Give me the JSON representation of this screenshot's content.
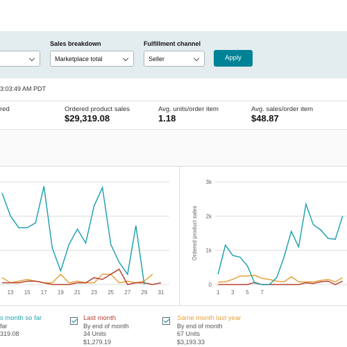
{
  "filters": {
    "sales_breakdown_label": "Sales breakdown",
    "sales_breakdown_value": "Marketplace total",
    "fulfillment_label": "Fulfillment channel",
    "fulfillment_value": "Seller",
    "apply": "Apply"
  },
  "timestamp": "3:03:49 AM PDT",
  "metrics": [
    {
      "label": "red"
    },
    {
      "label": "Ordered product sales",
      "value": "$29,319.08"
    },
    {
      "label": "Avg. units/order item",
      "value": "1.18"
    },
    {
      "label": "Avg. sales/order item",
      "value": "$48.87"
    }
  ],
  "charts": [
    {
      "type": "line",
      "x": [
        12,
        13,
        14,
        15,
        16,
        17,
        18,
        19,
        20,
        21,
        22,
        23,
        24,
        25,
        26,
        27,
        28,
        29,
        30,
        31
      ],
      "xticks": [
        13,
        15,
        17,
        19,
        21,
        23,
        25,
        27,
        29,
        31
      ],
      "xlim": [
        11.75,
        32
      ],
      "ylim": [
        0,
        3
      ],
      "series": [
        {
          "name": "This month",
          "color": "#23a3b0",
          "values": [
            2.67,
            2.0,
            1.66,
            1.66,
            1.8,
            2.87,
            1.07,
            0.4,
            1.17,
            1.62,
            1.21,
            2.3,
            2.83,
            1.17,
            0.65,
            0.3,
            1.72,
            0,
            null,
            null
          ]
        },
        {
          "name": "Last month",
          "color": "#b8412f",
          "values": [
            0.05,
            0.05,
            0.05,
            0.1,
            0.1,
            0.05,
            0,
            0,
            0,
            0.05,
            0.05,
            0.2,
            0.15,
            0.3,
            0.45,
            0,
            0.05,
            0.05,
            0,
            0.05
          ]
        },
        {
          "name": "Same month last year",
          "color": "#e3a23b",
          "values": [
            0.2,
            0.05,
            0.1,
            0.15,
            0.1,
            0.05,
            0.05,
            0.3,
            0.05,
            0.1,
            0.05,
            0.05,
            0.3,
            0.3,
            0.05,
            0.1,
            0.05,
            0.1,
            0.3,
            null
          ]
        }
      ]
    },
    {
      "type": "line",
      "y_label": "Ordered product sales",
      "x": [
        1,
        2,
        3,
        4,
        5,
        6,
        7,
        8,
        9,
        10,
        11,
        12,
        13,
        14,
        15,
        16,
        17,
        18
      ],
      "xticks": [
        1,
        3,
        5,
        7
      ],
      "xlim": [
        0.6,
        18.6
      ],
      "ylim": [
        0,
        3000
      ],
      "yticks": [
        0,
        {
          "value": 1000,
          "label": "1k"
        },
        {
          "value": 2000,
          "label": "2k"
        },
        {
          "value": 3000,
          "label": "3k"
        }
      ],
      "series": [
        {
          "name": "This month",
          "color": "#23a3b0",
          "values": [
            300,
            1150,
            850,
            800,
            550,
            40,
            0,
            0,
            200,
            800,
            1550,
            1100,
            2350,
            1750,
            1600,
            1350,
            1320,
            2000
          ]
        },
        {
          "name": "Last month",
          "color": "#b8412f",
          "values": [
            0,
            0,
            0,
            0,
            0,
            60,
            0,
            0,
            0,
            0,
            0,
            0,
            50,
            30,
            80,
            100,
            0,
            100
          ]
        },
        {
          "name": "Same month last year",
          "color": "#e3a23b",
          "values": [
            70,
            80,
            150,
            250,
            250,
            270,
            180,
            150,
            100,
            80,
            230,
            80,
            80,
            80,
            120,
            150,
            80,
            200
          ]
        }
      ]
    }
  ],
  "legend": [
    {
      "title": "s month so far",
      "line1": "far",
      "line2": "319.08"
    },
    {
      "title": "Last month",
      "line1": "By end of month",
      "line2": "34 Units",
      "line3": "$1,279.19"
    },
    {
      "title": "Same month last year",
      "line1": "By end of month",
      "line2": "67 Units",
      "line3": "$3,193.33"
    }
  ]
}
